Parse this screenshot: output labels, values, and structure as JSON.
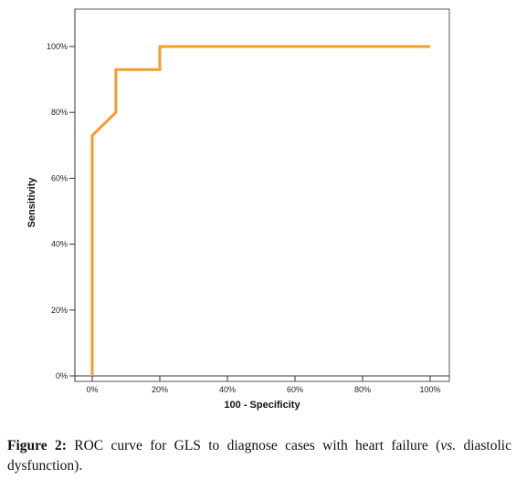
{
  "chart_data": {
    "type": "line",
    "xlabel": "100 - Specificity",
    "ylabel": "Sensitivity",
    "xlim": [
      0,
      100
    ],
    "ylim": [
      0,
      100
    ],
    "x_ticks": [
      "0%",
      "20%",
      "40%",
      "60%",
      "80%",
      "100%"
    ],
    "y_ticks": [
      "0%",
      "20%",
      "40%",
      "60%",
      "80%",
      "100%"
    ],
    "grid": false,
    "legend": "none",
    "series": [
      {
        "color": "#f39c2a",
        "x": [
          0,
          0,
          7,
          7,
          20,
          20,
          100
        ],
        "y": [
          0,
          73,
          80,
          93,
          93,
          100,
          100
        ]
      }
    ]
  },
  "caption": {
    "label": "Figure 2:",
    "text_main": " ROC curve for GLS to diagnose cases with heart failure (",
    "text_italic": "vs.",
    "text_end": " diastolic dysfunction)."
  }
}
